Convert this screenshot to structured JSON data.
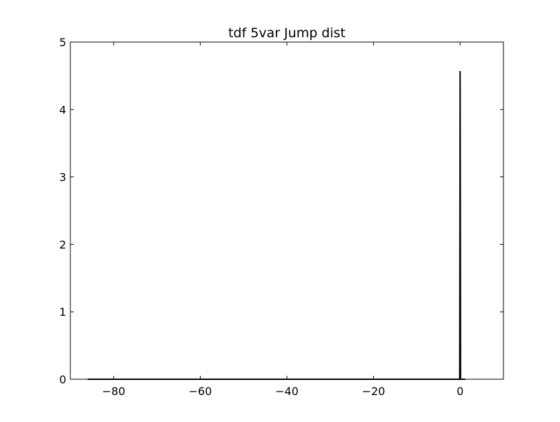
{
  "chart_data": {
    "type": "line",
    "title": "tdf 5var Jump dist",
    "xlabel": "",
    "ylabel": "",
    "xlim": [
      -90,
      10
    ],
    "ylim": [
      0,
      5
    ],
    "x_ticks": [
      -80,
      -60,
      -40,
      -20,
      0
    ],
    "x_tick_labels": [
      "−80",
      "−60",
      "−40",
      "−20",
      "0"
    ],
    "y_ticks": [
      0,
      1,
      2,
      3,
      4,
      5
    ],
    "y_tick_labels": [
      "0",
      "1",
      "2",
      "3",
      "4",
      "5"
    ],
    "grid": false,
    "legend": "none",
    "series": [
      {
        "color": "#000000",
        "x": [
          -86,
          -0.1,
          0,
          0.1,
          1.2
        ],
        "y": [
          0,
          0,
          4.57,
          0,
          0
        ]
      }
    ]
  }
}
